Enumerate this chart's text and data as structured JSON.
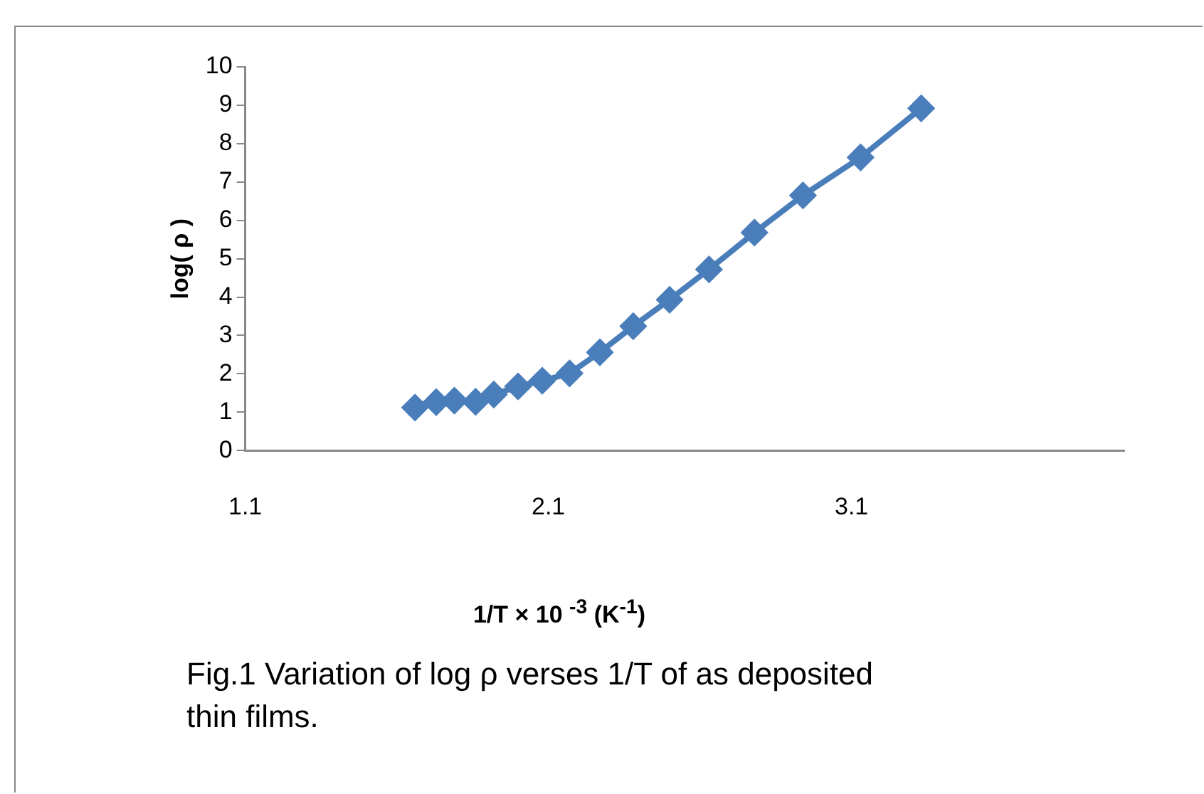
{
  "chart_data": {
    "type": "line",
    "xlabel": "1/T × 10 $^{-3}$  (K$^{-1}$)",
    "ylabel": "log( ρ )",
    "annotations": [
      "Fig.1  Variation of log ρ verses 1/T of as deposited thin films."
    ],
    "series": [
      {
        "color": "#4a7ebb",
        "x": [
          1.66,
          1.73,
          1.79,
          1.86,
          1.92,
          2.0,
          2.08,
          2.17,
          2.27,
          2.38,
          2.5,
          2.63,
          2.78,
          2.94,
          3.13,
          3.33
        ],
        "values": [
          1.12,
          1.26,
          1.3,
          1.27,
          1.46,
          1.67,
          1.82,
          2.01,
          2.56,
          3.24,
          3.93,
          4.72,
          5.68,
          6.65,
          7.64,
          8.92
        ]
      }
    ],
    "xlim": [
      1.1,
      4.0
    ],
    "xticks": [
      1.1,
      2.1,
      3.1
    ],
    "ylim": [
      0,
      10
    ],
    "yticks": [
      0,
      1,
      2,
      3,
      4,
      5,
      6,
      7,
      8,
      9,
      10
    ],
    "grid": false,
    "legend": false,
    "marker": "diamond",
    "line_style": "solid"
  }
}
